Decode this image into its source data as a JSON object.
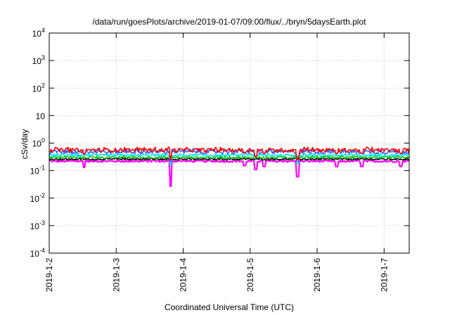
{
  "chart_data": {
    "type": "line",
    "title": "/data/run/goesPlots/archive/2019-01-07/09:00/flux/../bryn/5daysEarth.plot",
    "xlabel": "Coordinated Universal Time (UTC)",
    "ylabel": "cSv/day",
    "yscale": "log",
    "ylim": [
      0.0001,
      10000
    ],
    "xlim": [
      "2019-01-02",
      "2019-01-07 09:00"
    ],
    "grid": true,
    "y_ticks": [
      {
        "value": 0.0001,
        "base": "10",
        "exp": "-4"
      },
      {
        "value": 0.001,
        "base": "10",
        "exp": "-3"
      },
      {
        "value": 0.01,
        "base": "10",
        "exp": "-2"
      },
      {
        "value": 0.1,
        "base": "10",
        "exp": "-1"
      },
      {
        "value": 1,
        "base": "10",
        "exp": "0"
      },
      {
        "value": 10,
        "base": "10",
        "exp": ""
      },
      {
        "value": 100,
        "base": "10",
        "exp": "2"
      },
      {
        "value": 1000,
        "base": "10",
        "exp": "3"
      },
      {
        "value": 10000,
        "base": "10",
        "exp": "4"
      }
    ],
    "x_ticks": [
      {
        "value": "2019-01-02",
        "label": "2019-1-2"
      },
      {
        "value": "2019-01-03",
        "label": "2019-1-3"
      },
      {
        "value": "2019-01-04",
        "label": "2019-1-4"
      },
      {
        "value": "2019-01-05",
        "label": "2019-1-5"
      },
      {
        "value": "2019-01-06",
        "label": "2019-1-6"
      },
      {
        "value": "2019-01-07",
        "label": "2019-1-7"
      }
    ],
    "dips": [
      {
        "time": "2019-01-02 12:30",
        "value": 0.13
      },
      {
        "time": "2019-01-03 19:30",
        "value": 0.027
      },
      {
        "time": "2019-01-04 22:00",
        "value": 0.15
      },
      {
        "time": "2019-01-05 02:00",
        "value": 0.11
      },
      {
        "time": "2019-01-05 05:00",
        "value": 0.14
      },
      {
        "time": "2019-01-05 17:00",
        "value": 0.06
      },
      {
        "time": "2019-01-06 07:00",
        "value": 0.14
      },
      {
        "time": "2019-01-06 16:00",
        "value": 0.14
      },
      {
        "time": "2019-01-07 06:00",
        "value": 0.14
      }
    ],
    "series": [
      {
        "color": "#ff00ff",
        "level": 0.22,
        "noise": 0.06,
        "dips": true
      },
      {
        "color": "#000000",
        "level": 0.26,
        "noise": 0.05,
        "dips": false
      },
      {
        "color": "#00c000",
        "level": 0.3,
        "noise": 0.06,
        "dips": false
      },
      {
        "color": "#00e0e0",
        "level": 0.36,
        "noise": 0.07,
        "dips": false
      },
      {
        "color": "#3366ff",
        "level": 0.48,
        "noise": 0.12,
        "dips": false
      },
      {
        "color": "#ff0000",
        "level": 0.56,
        "noise": 0.12,
        "dips": false
      }
    ]
  }
}
